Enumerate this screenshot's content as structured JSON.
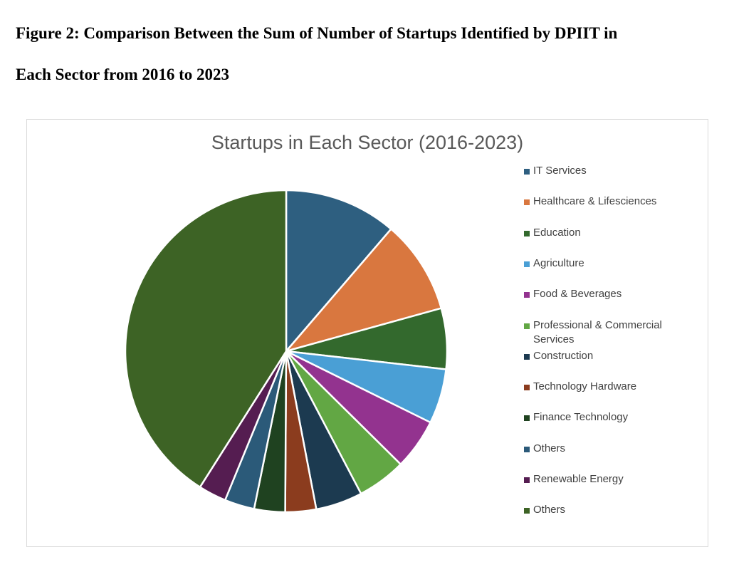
{
  "figure": {
    "caption_line1": "Figure 2: Comparison Between the Sum of Number of Startups Identified by DPIIT in",
    "caption_line2": "Each Sector from 2016 to 2023"
  },
  "chart_data": {
    "type": "pie",
    "title": "Startups in Each Sector (2016-2023)",
    "legend_position": "right",
    "slices": [
      {
        "label": "IT Services",
        "value": 11.3,
        "color": "#2e5f80"
      },
      {
        "label": "Healthcare & Lifesciences",
        "value": 9.4,
        "color": "#d9773f"
      },
      {
        "label": "Education",
        "value": 6.1,
        "color": "#33692d"
      },
      {
        "label": "Agriculture",
        "value": 5.5,
        "color": "#4a9fd5"
      },
      {
        "label": "Food & Beverages",
        "value": 5.1,
        "color": "#93338f"
      },
      {
        "label": "Professional & Commercial Services",
        "value": 4.9,
        "color": "#62a744"
      },
      {
        "label": "Construction",
        "value": 4.7,
        "color": "#1c3a50"
      },
      {
        "label": "Technology Hardware",
        "value": 3.1,
        "color": "#8b3c1e"
      },
      {
        "label": "Finance Technology",
        "value": 3.1,
        "color": "#1f4220"
      },
      {
        "label": "Others",
        "value": 3.0,
        "color": "#2b5a79"
      },
      {
        "label": "Renewable Energy",
        "value": 2.8,
        "color": "#551d51"
      },
      {
        "label": "Others",
        "value": 41.0,
        "color": "#3d6325"
      }
    ]
  }
}
